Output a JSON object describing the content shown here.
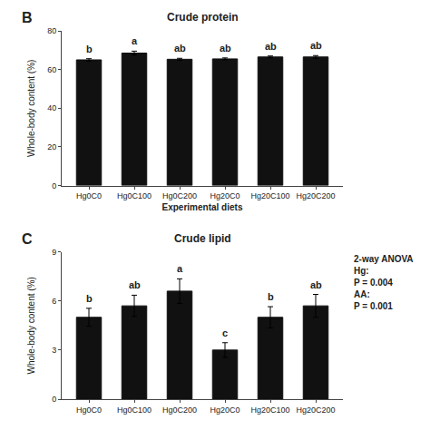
{
  "chart_data": [
    {
      "type": "bar",
      "label": "B",
      "title": "Crude protein",
      "categories": [
        "Hg0C0",
        "Hg0C100",
        "Hg0C200",
        "Hg20C0",
        "Hg20C100",
        "Hg20C200"
      ],
      "values": [
        65.0,
        68.5,
        65.3,
        65.5,
        66.5,
        66.5
      ],
      "errors": [
        0.6,
        1.0,
        0.5,
        0.5,
        0.5,
        0.7
      ],
      "sig_labels": [
        "b",
        "a",
        "ab",
        "ab",
        "ab",
        "ab"
      ],
      "color": "#111111",
      "ylabel": "Whole-body content (%)",
      "xlabel": "Experimental diets",
      "ylim": [
        0,
        80
      ],
      "yticks": [
        0,
        20,
        40,
        60,
        80
      ],
      "grid": false
    },
    {
      "type": "bar",
      "label": "C",
      "title": "Crude lipid",
      "categories": [
        "Hg0C0",
        "Hg0C100",
        "Hg0C200",
        "Hg20C0",
        "Hg20C100",
        "Hg20C200"
      ],
      "values": [
        5.0,
        5.7,
        6.6,
        3.0,
        5.0,
        5.7
      ],
      "errors": [
        0.55,
        0.65,
        0.75,
        0.45,
        0.65,
        0.7
      ],
      "sig_labels": [
        "b",
        "ab",
        "a",
        "c",
        "b",
        "ab"
      ],
      "color": "#111111",
      "ylabel": "Whole-body content (%)",
      "ylim": [
        0,
        9
      ],
      "yticks": [
        0,
        3,
        6,
        9
      ],
      "grid": false,
      "annotation": "2-way ANOVA\nHg:\nP = 0.004\nAA:\nP = 0.001"
    }
  ]
}
